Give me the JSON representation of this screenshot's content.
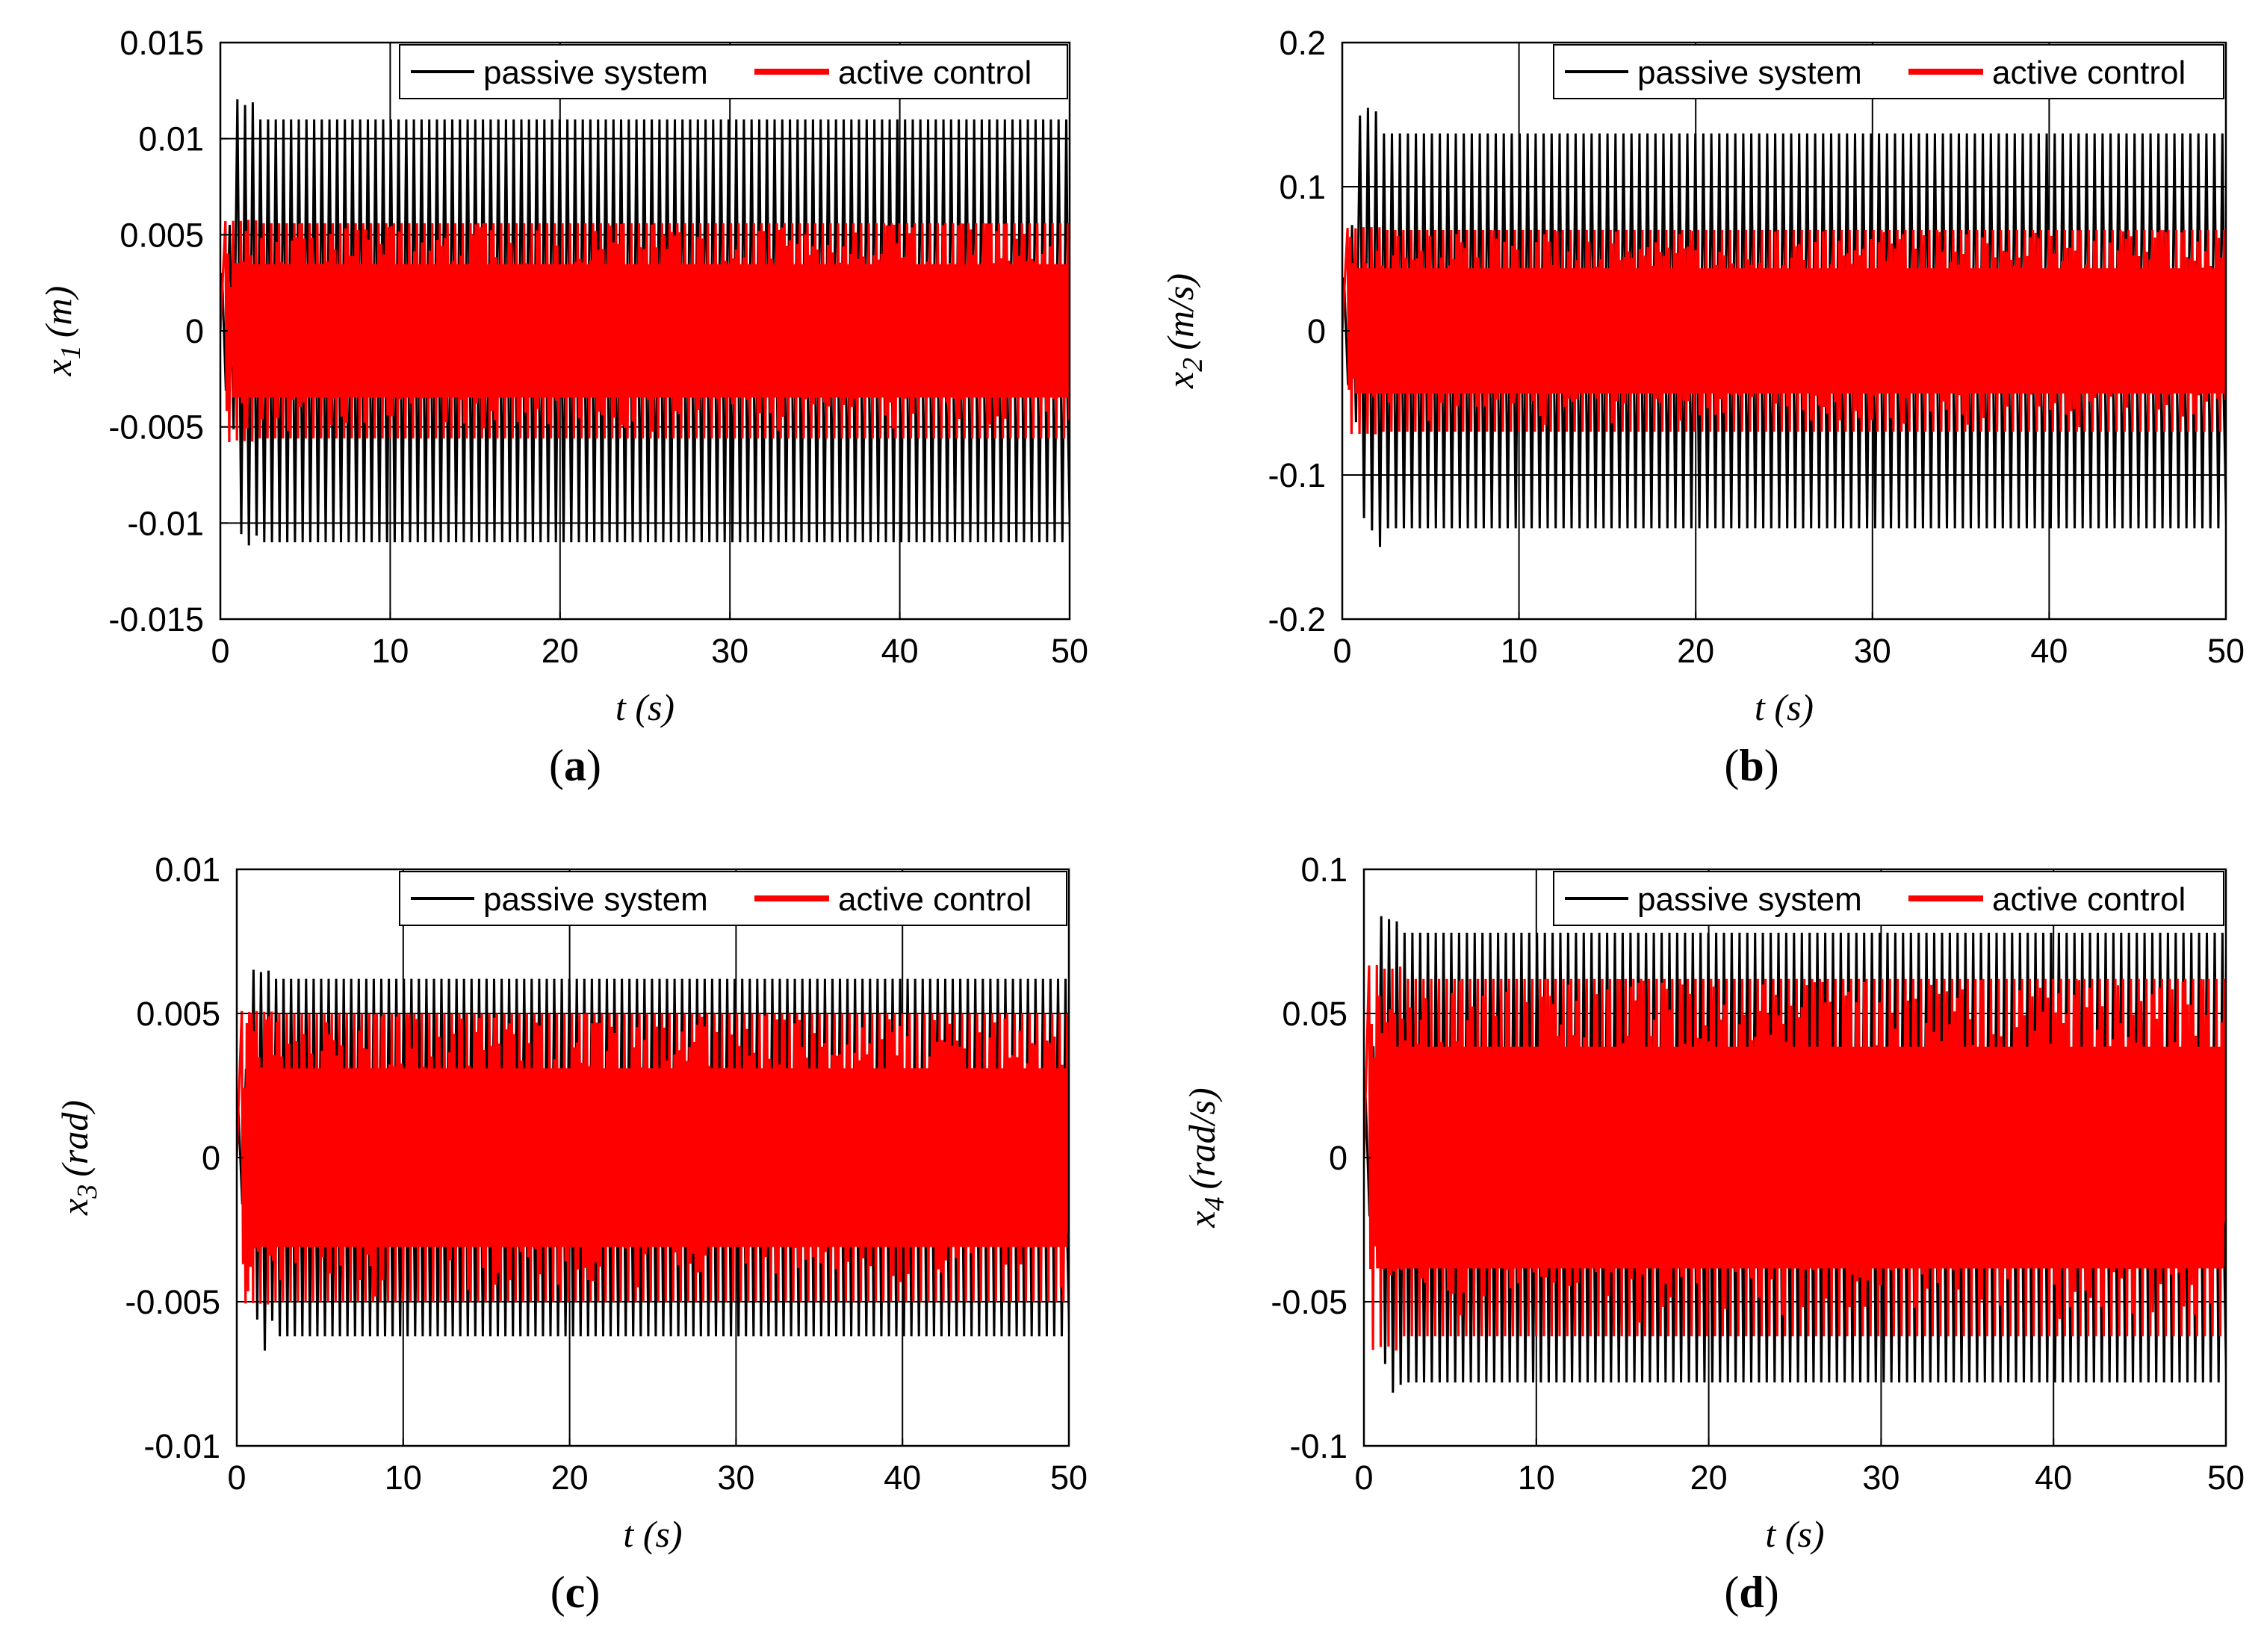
{
  "colors": {
    "passive": "#000000",
    "active": "#ff0000"
  },
  "chart_data": [
    {
      "type": "line",
      "panel": "(a)",
      "panel_letter": "a",
      "xlabel": "t (s)",
      "ylabel_main": "x",
      "ylabel_sub": "1",
      "ylabel_unit": "(m)",
      "xlim": [
        0,
        50
      ],
      "ylim": [
        -0.015,
        0.015
      ],
      "xticks": [
        0,
        10,
        20,
        30,
        40,
        50
      ],
      "xtick_labels": [
        "0",
        "10",
        "20",
        "30",
        "40",
        "50"
      ],
      "yticks": [
        -0.015,
        -0.01,
        -0.005,
        0,
        0.005,
        0.01,
        0.015
      ],
      "ytick_labels": [
        "-0.015",
        "-0.01",
        "-0.005",
        "0",
        "0.005",
        "0.01",
        "0.015"
      ],
      "legend": [
        "passive system",
        "active control"
      ],
      "series": [
        {
          "name": "passive system",
          "amplitude": 0.011,
          "transient_peak": 0.0121,
          "cycles": 110,
          "start": 0.1,
          "end": 49.8
        },
        {
          "name": "active control",
          "amplitude": 0.0056,
          "transient_peak": 0.0058,
          "cycles": 330,
          "start": 0.3,
          "end": 49.9
        }
      ]
    },
    {
      "type": "line",
      "panel": "(b)",
      "panel_letter": "b",
      "xlabel": "t (s)",
      "ylabel_main": "x",
      "ylabel_sub": "2",
      "ylabel_unit": "(m/s)",
      "xlim": [
        0,
        50
      ],
      "ylim": [
        -0.2,
        0.2
      ],
      "xticks": [
        0,
        10,
        20,
        30,
        40,
        50
      ],
      "xtick_labels": [
        "0",
        "10",
        "20",
        "30",
        "40",
        "50"
      ],
      "yticks": [
        -0.2,
        -0.1,
        0,
        0.1,
        0.2
      ],
      "ytick_labels": [
        "-0.2",
        "-0.1",
        "0",
        "0.1",
        "0.2"
      ],
      "legend": [
        "passive system",
        "active control"
      ],
      "series": [
        {
          "name": "passive system",
          "amplitude": 0.137,
          "transient_peak": 0.157,
          "cycles": 110,
          "start": 0.1,
          "end": 49.8
        },
        {
          "name": "active control",
          "amplitude": 0.07,
          "transient_peak": 0.072,
          "cycles": 330,
          "start": 0.3,
          "end": 49.9
        }
      ]
    },
    {
      "type": "line",
      "panel": "(c)",
      "panel_letter": "c",
      "xlabel": "t (s)",
      "ylabel_main": "x",
      "ylabel_sub": "3",
      "ylabel_unit": "(rad)",
      "xlim": [
        0,
        50
      ],
      "ylim": [
        -0.01,
        0.01
      ],
      "xticks": [
        0,
        10,
        20,
        30,
        40,
        50
      ],
      "xtick_labels": [
        "0",
        "10",
        "20",
        "30",
        "40",
        "50"
      ],
      "yticks": [
        -0.01,
        -0.005,
        0,
        0.005,
        0.01
      ],
      "ytick_labels": [
        "-0.01",
        "-0.005",
        "0",
        "0.005",
        "0.01"
      ],
      "legend": [
        "passive system",
        "active control"
      ],
      "series": [
        {
          "name": "passive system",
          "amplitude": 0.0062,
          "transient_peak": 0.0066,
          "cycles": 110,
          "start": 0.1,
          "end": 49.8
        },
        {
          "name": "active control",
          "amplitude": 0.005,
          "transient_peak": 0.0051,
          "cycles": 330,
          "start": 0.3,
          "end": 49.9
        }
      ]
    },
    {
      "type": "line",
      "panel": "(d)",
      "panel_letter": "d",
      "xlabel": "t (s)",
      "ylabel_main": "x",
      "ylabel_sub": "4",
      "ylabel_unit": "(rad/s)",
      "xlim": [
        0,
        50
      ],
      "ylim": [
        -0.1,
        0.1
      ],
      "xticks": [
        0,
        10,
        20,
        30,
        40,
        50
      ],
      "xtick_labels": [
        "0",
        "10",
        "20",
        "30",
        "40",
        "50"
      ],
      "yticks": [
        -0.1,
        -0.05,
        0,
        0.05,
        0.1
      ],
      "ytick_labels": [
        "-0.1",
        "-0.05",
        "0",
        "0.05",
        "0.1"
      ],
      "legend": [
        "passive system",
        "active control"
      ],
      "series": [
        {
          "name": "passive system",
          "amplitude": 0.078,
          "transient_peak": 0.084,
          "cycles": 110,
          "start": 0.1,
          "end": 49.8
        },
        {
          "name": "active control",
          "amplitude": 0.062,
          "transient_peak": 0.067,
          "cycles": 330,
          "start": 0.3,
          "end": 49.9
        }
      ]
    }
  ]
}
